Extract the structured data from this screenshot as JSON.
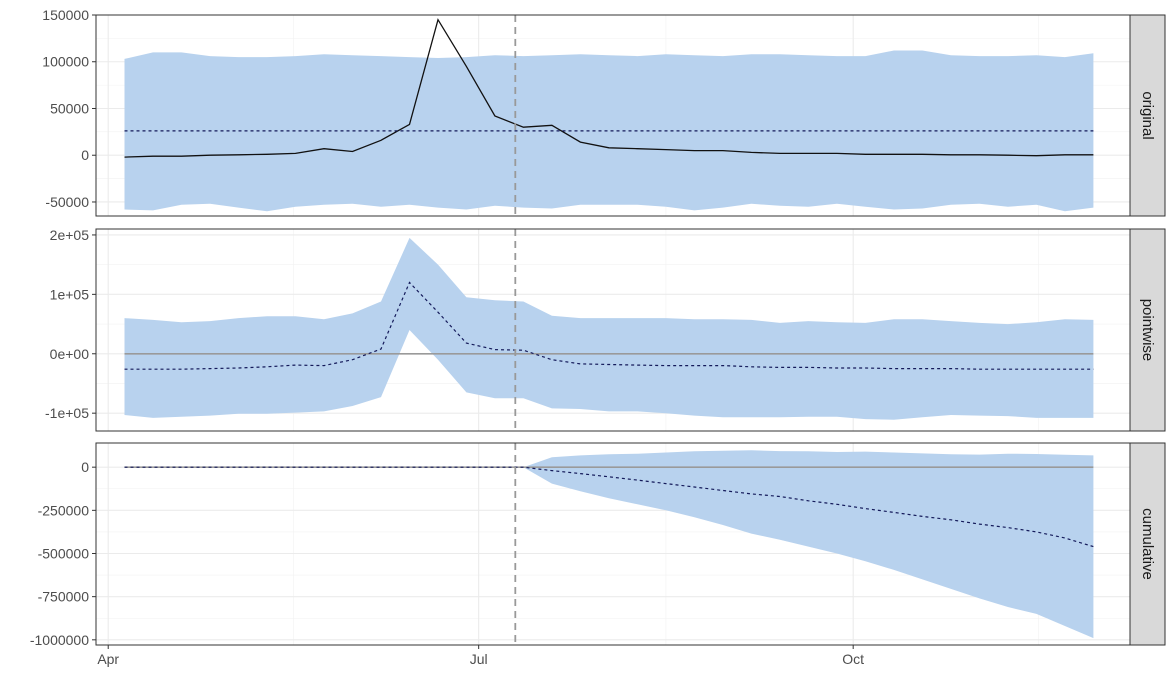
{
  "chart_data": {
    "type": "line",
    "layout": "faceted",
    "x": [
      "2020-04-05",
      "2020-04-12",
      "2020-04-19",
      "2020-04-26",
      "2020-05-03",
      "2020-05-10",
      "2020-05-17",
      "2020-05-24",
      "2020-05-31",
      "2020-06-07",
      "2020-06-14",
      "2020-06-21",
      "2020-06-28",
      "2020-07-05",
      "2020-07-12",
      "2020-07-19",
      "2020-07-26",
      "2020-08-02",
      "2020-08-09",
      "2020-08-16",
      "2020-08-23",
      "2020-08-30",
      "2020-09-06",
      "2020-09-13",
      "2020-09-20",
      "2020-09-27",
      "2020-10-04",
      "2020-10-11",
      "2020-10-18",
      "2020-10-25",
      "2020-11-01",
      "2020-11-08",
      "2020-11-15",
      "2020-11-22",
      "2020-11-29"
    ],
    "intervention_date": "2020-07-10",
    "x_ticks": [
      "Apr",
      "Jul",
      "Oct"
    ],
    "x_tick_dates": [
      "2020-04-01",
      "2020-07-01",
      "2020-10-01"
    ],
    "grid": true,
    "colors": {
      "band": "#b8d2ee",
      "dashed_line": "#141a5a",
      "solid_line": "#111111",
      "zero_line": "#9a9a9a",
      "vline": "#999999",
      "strip_bg": "#d9d9d9",
      "grid": "#ebebeb"
    },
    "panels": [
      {
        "strip": "original",
        "ylim": [
          -65000,
          150000
        ],
        "y_ticks": [
          -50000,
          0,
          50000,
          100000,
          150000
        ],
        "y_tick_labels": [
          "-50000",
          "0",
          "50000",
          "100000",
          "150000"
        ],
        "zero_line": false,
        "solid_values": [
          -2000,
          -1000,
          -1000,
          0,
          500,
          1000,
          2000,
          7000,
          4000,
          16000,
          33000,
          145000,
          95000,
          42000,
          30000,
          32000,
          14000,
          8000,
          7000,
          6000,
          5000,
          5000,
          3000,
          2000,
          2000,
          2000,
          1000,
          1000,
          1000,
          500,
          500,
          0,
          -500,
          500,
          500
        ],
        "dashed_values": [
          26000,
          26000,
          26000,
          26000,
          26000,
          26000,
          26000,
          26000,
          26000,
          26000,
          26000,
          26000,
          26000,
          26000,
          26000,
          26000,
          26000,
          26000,
          26000,
          26000,
          26000,
          26000,
          26000,
          26000,
          26000,
          26000,
          26000,
          26000,
          26000,
          26000,
          26000,
          26000,
          26000,
          26000,
          26000
        ],
        "band_upper": [
          103000,
          110000,
          110000,
          106000,
          105000,
          105000,
          106000,
          108000,
          107000,
          106000,
          105000,
          104000,
          105000,
          107000,
          106000,
          107000,
          108000,
          107000,
          106000,
          108000,
          107000,
          106000,
          108000,
          108000,
          107000,
          106000,
          106000,
          112000,
          112000,
          107000,
          106000,
          106000,
          107000,
          105000,
          109000
        ],
        "band_lower": [
          -58000,
          -59000,
          -53000,
          -52000,
          -56000,
          -60000,
          -55000,
          -53000,
          -52000,
          -55000,
          -53000,
          -56000,
          -58000,
          -54000,
          -56000,
          -57000,
          -53000,
          -53000,
          -53000,
          -55000,
          -59000,
          -56000,
          -52000,
          -54000,
          -55000,
          -52000,
          -55000,
          -58000,
          -57000,
          -53000,
          -52000,
          -55000,
          -53000,
          -60000,
          -56000
        ]
      },
      {
        "strip": "pointwise",
        "ylim": [
          -130000,
          210000
        ],
        "y_ticks": [
          -100000,
          0,
          100000,
          200000
        ],
        "y_tick_labels": [
          "-1e+05",
          "0e+00",
          "1e+05",
          "2e+05"
        ],
        "zero_line": true,
        "dashed_values": [
          -26000,
          -26000,
          -26000,
          -25000,
          -24000,
          -22000,
          -19000,
          -20000,
          -10000,
          8000,
          120000,
          70000,
          18000,
          7000,
          6000,
          -10000,
          -17000,
          -18000,
          -19000,
          -20000,
          -20000,
          -20000,
          -22000,
          -23000,
          -23000,
          -24000,
          -24000,
          -25000,
          -25000,
          -25000,
          -26000,
          -26000,
          -26000,
          -26000,
          -26000
        ],
        "band_upper": [
          60000,
          57000,
          53000,
          55000,
          60000,
          63000,
          63000,
          58000,
          68000,
          88000,
          195000,
          150000,
          95000,
          90000,
          88000,
          64000,
          60000,
          60000,
          60000,
          60000,
          58000,
          58000,
          57000,
          52000,
          55000,
          53000,
          52000,
          58000,
          58000,
          55000,
          52000,
          50000,
          53000,
          58000,
          57000
        ],
        "band_lower": [
          -103000,
          -108000,
          -106000,
          -104000,
          -101000,
          -101000,
          -99000,
          -97000,
          -88000,
          -73000,
          40000,
          -10000,
          -65000,
          -75000,
          -75000,
          -92000,
          -93000,
          -97000,
          -97000,
          -100000,
          -104000,
          -107000,
          -107000,
          -107000,
          -106000,
          -106000,
          -110000,
          -111000,
          -107000,
          -103000,
          -104000,
          -105000,
          -108000,
          -108000,
          -108000
        ]
      },
      {
        "strip": "cumulative",
        "ylim": [
          -1030000,
          140000
        ],
        "y_ticks": [
          -1000000,
          -750000,
          -500000,
          -250000,
          0
        ],
        "y_tick_labels": [
          "-1000000",
          "-750000",
          "-500000",
          "-250000",
          "0"
        ],
        "zero_line": true,
        "dashed_values": [
          0,
          0,
          0,
          0,
          0,
          0,
          0,
          0,
          0,
          0,
          0,
          0,
          0,
          0,
          0,
          -20000,
          -37000,
          -56000,
          -75000,
          -95000,
          -115000,
          -135000,
          -155000,
          -170000,
          -195000,
          -215000,
          -240000,
          -262000,
          -285000,
          -305000,
          -330000,
          -350000,
          -375000,
          -410000,
          -460000
        ],
        "band_upper": [
          0,
          0,
          0,
          0,
          0,
          0,
          0,
          0,
          0,
          0,
          0,
          0,
          0,
          0,
          0,
          58000,
          68000,
          75000,
          78000,
          85000,
          92000,
          95000,
          98000,
          93000,
          92000,
          88000,
          90000,
          85000,
          80000,
          75000,
          73000,
          78000,
          76000,
          72000,
          68000
        ],
        "band_lower": [
          0,
          0,
          0,
          0,
          0,
          0,
          0,
          0,
          0,
          0,
          0,
          0,
          0,
          0,
          0,
          -95000,
          -140000,
          -180000,
          -215000,
          -250000,
          -290000,
          -335000,
          -385000,
          -420000,
          -460000,
          -500000,
          -545000,
          -595000,
          -650000,
          -705000,
          -760000,
          -810000,
          -850000,
          -920000,
          -990000
        ]
      }
    ]
  }
}
